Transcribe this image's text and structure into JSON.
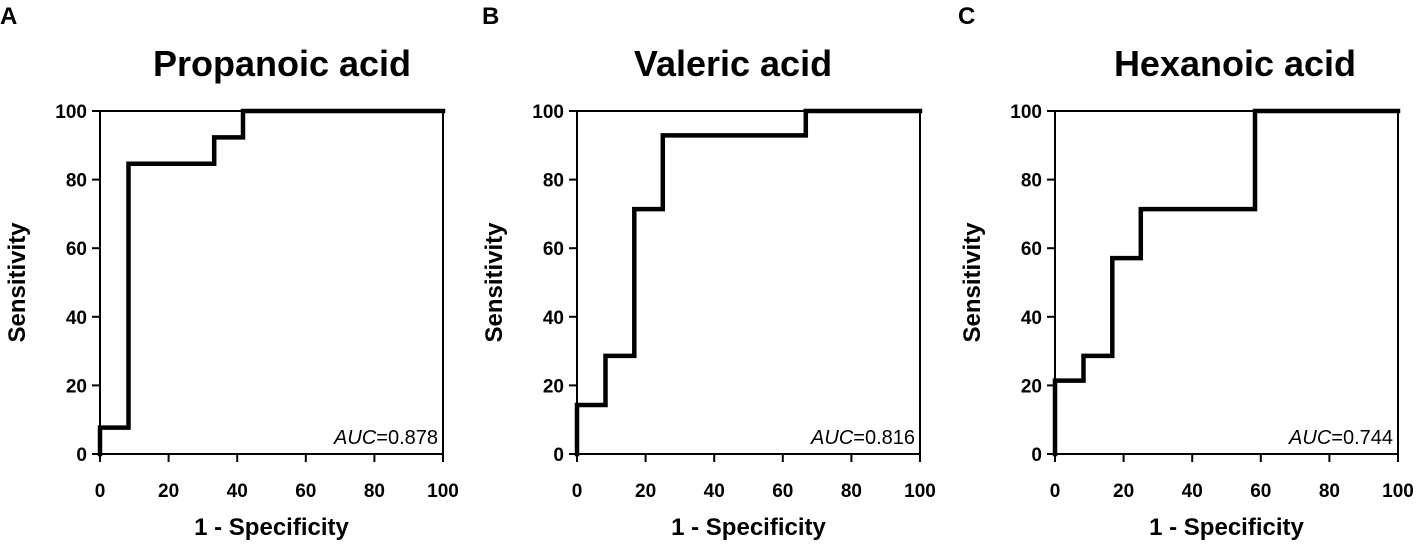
{
  "chart_data": [
    {
      "panel": "A",
      "type": "line",
      "title": "Propanoic acid",
      "xlabel": "1 - Specificity",
      "ylabel": "Sensitivity",
      "xlim": [
        0,
        100
      ],
      "ylim": [
        0,
        100
      ],
      "xticks": [
        0,
        20,
        40,
        60,
        80,
        100
      ],
      "yticks": [
        0,
        20,
        40,
        60,
        80,
        100
      ],
      "auc_prefix": "AUC",
      "auc_value": "=0.878",
      "series": [
        {
          "x": [
            0,
            0,
            8.3,
            8.3,
            33.3,
            33.3,
            41.7,
            41.7,
            100
          ],
          "y": [
            0,
            7.7,
            7.7,
            84.6,
            84.6,
            92.3,
            92.3,
            100,
            100
          ]
        }
      ]
    },
    {
      "panel": "B",
      "type": "line",
      "title": "Valeric acid",
      "xlabel": "1 - Specificity",
      "ylabel": "Sensitivity",
      "xlim": [
        0,
        100
      ],
      "ylim": [
        0,
        100
      ],
      "xticks": [
        0,
        20,
        40,
        60,
        80,
        100
      ],
      "yticks": [
        0,
        20,
        40,
        60,
        80,
        100
      ],
      "auc_prefix": "AUC",
      "auc_value": "=0.816",
      "series": [
        {
          "x": [
            0,
            0,
            8.3,
            8.3,
            16.7,
            16.7,
            25,
            25,
            66.7,
            66.7,
            100
          ],
          "y": [
            0,
            14.3,
            14.3,
            28.6,
            28.6,
            71.4,
            71.4,
            92.9,
            92.9,
            100,
            100
          ]
        }
      ]
    },
    {
      "panel": "C",
      "type": "line",
      "title": "Hexanoic acid",
      "xlabel": "1 - Specificity",
      "ylabel": "Sensitivity",
      "xlim": [
        0,
        100
      ],
      "ylim": [
        0,
        100
      ],
      "xticks": [
        0,
        20,
        40,
        60,
        80,
        100
      ],
      "yticks": [
        0,
        20,
        40,
        60,
        80,
        100
      ],
      "auc_prefix": "AUC",
      "auc_value": "=0.744",
      "series": [
        {
          "x": [
            0,
            0,
            8.3,
            8.3,
            16.7,
            16.7,
            25,
            25,
            58.3,
            58.3,
            100
          ],
          "y": [
            0,
            21.4,
            21.4,
            28.6,
            28.6,
            57.1,
            57.1,
            71.4,
            71.4,
            100,
            100
          ]
        }
      ]
    }
  ]
}
